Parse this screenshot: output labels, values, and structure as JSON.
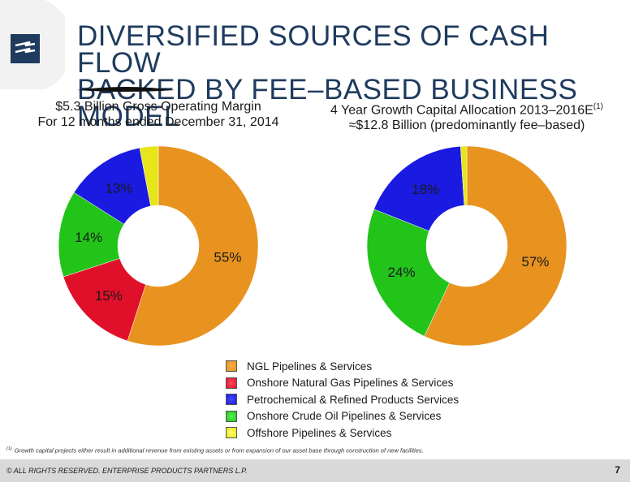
{
  "header": {
    "title_line1": "DIVERSIFIED SOURCES OF CASH FLOW",
    "title_line2": "BACKED BY FEE–BASED BUSINESS MODEL"
  },
  "colors": {
    "brand": "#1f3b5e",
    "ngl": "#e89320",
    "natural_gas": "#e0102a",
    "petrochemical": "#1a1ae0",
    "crude_oil": "#22c41a",
    "offshore": "#e6e61a"
  },
  "chart_data": [
    {
      "type": "pie",
      "title_line1": "$5.3 Billion Gross Operating Margin",
      "title_line2": "For 12 months ended December 31, 2014",
      "labels": [
        "NGL Pipelines & Services",
        "Onshore Natural Gas Pipelines & Services",
        "Onshore Crude Oil Pipelines & Services",
        "Petrochemical & Refined Products Services",
        "Offshore Pipelines & Services"
      ],
      "values": [
        55,
        15,
        14,
        13,
        3
      ],
      "data_labels": [
        "55%",
        "15%",
        "14%",
        "13%",
        "3%"
      ]
    },
    {
      "type": "pie",
      "title_line1": "4 Year Growth Capital Allocation 2013–2016E",
      "title_sup": "(1)",
      "title_line2": "≈$12.8 Billion (predominantly fee–based)",
      "labels": [
        "NGL Pipelines & Services",
        "Onshore Crude Oil Pipelines & Services",
        "Petrochemical & Refined Products Services",
        "Offshore Pipelines & Services"
      ],
      "values": [
        57,
        24,
        18,
        1
      ],
      "data_labels": [
        "57%",
        "24%",
        "18%",
        "1%"
      ]
    }
  ],
  "legend": [
    {
      "label": "NGL Pipelines & Services",
      "color": "#e89320"
    },
    {
      "label": "Onshore Natural Gas Pipelines & Services",
      "color": "#e0102a"
    },
    {
      "label": "Petrochemical & Refined Products Services",
      "color": "#1a1ae0"
    },
    {
      "label": "Onshore Crude Oil Pipelines & Services",
      "color": "#22c41a"
    },
    {
      "label": "Offshore Pipelines & Services",
      "color": "#e6e61a"
    }
  ],
  "footnote": {
    "marker": "(1)",
    "text": "Growth capital projects either result in additional revenue from existing assets or from expansion of our asset base through construction of new facilities."
  },
  "footer": {
    "copyright": "© ALL RIGHTS RESERVED. ENTERPRISE PRODUCTS PARTNERS L.P.",
    "page_number": "7"
  }
}
